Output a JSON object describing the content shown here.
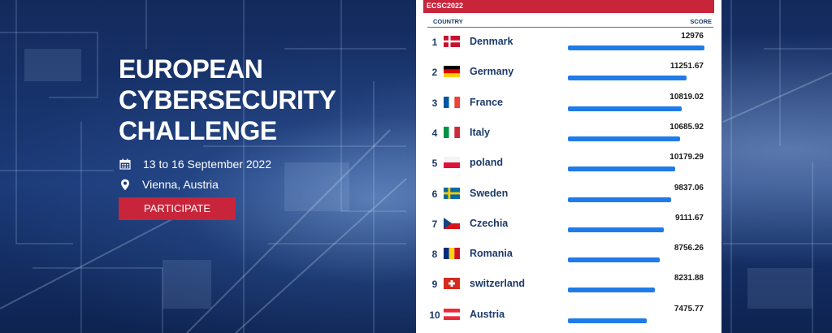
{
  "hero": {
    "title_lines": [
      "EUROPEAN",
      "CYBERSECURITY",
      "CHALLENGE"
    ],
    "date": "13 to 16 September 2022",
    "location": "Vienna, Austria",
    "button_label": "PARTICIPATE",
    "date_icon": "calendar-icon",
    "location_icon": "location-pin-icon"
  },
  "colors": {
    "accent_red": "#c8243a",
    "bar_blue": "#1f7be8",
    "text_navy": "#1c3a6b"
  },
  "leaderboard": {
    "header": "ECSC2022",
    "col_country": "COUNTRY",
    "col_score": "SCORE",
    "max_score": 12976,
    "rows": [
      {
        "rank": "1",
        "country": "Denmark",
        "score": "12976",
        "value": 12976,
        "flag": "denmark"
      },
      {
        "rank": "2",
        "country": "Germany",
        "score": "11251.67",
        "value": 11251.67,
        "flag": "germany"
      },
      {
        "rank": "3",
        "country": "France",
        "score": "10819.02",
        "value": 10819.02,
        "flag": "france"
      },
      {
        "rank": "4",
        "country": "Italy",
        "score": "10685.92",
        "value": 10685.92,
        "flag": "italy"
      },
      {
        "rank": "5",
        "country": "poland",
        "score": "10179.29",
        "value": 10179.29,
        "flag": "poland"
      },
      {
        "rank": "6",
        "country": "Sweden",
        "score": "9837.06",
        "value": 9837.06,
        "flag": "sweden"
      },
      {
        "rank": "7",
        "country": "Czechia",
        "score": "9111.67",
        "value": 9111.67,
        "flag": "czechia"
      },
      {
        "rank": "8",
        "country": "Romania",
        "score": "8756.26",
        "value": 8756.26,
        "flag": "romania"
      },
      {
        "rank": "9",
        "country": "switzerland",
        "score": "8231.88",
        "value": 8231.88,
        "flag": "switzerland"
      },
      {
        "rank": "10",
        "country": "Austria",
        "score": "7475.77",
        "value": 7475.77,
        "flag": "austria"
      }
    ]
  }
}
